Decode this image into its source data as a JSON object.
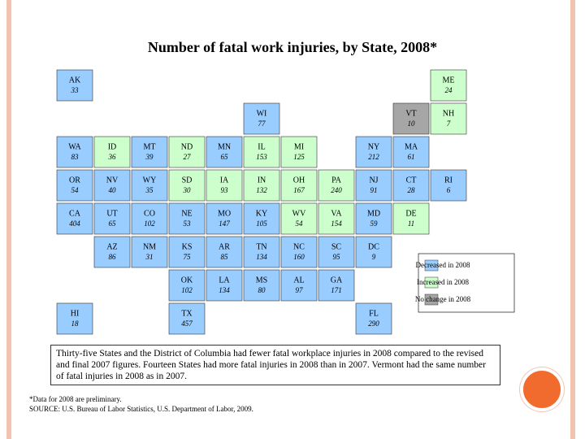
{
  "title": "Number of fatal work injuries, by State, 2008*",
  "legend": [
    {
      "label": "Decreased in 2008",
      "color": "#99ccff"
    },
    {
      "label": "Increased in 2008",
      "color": "#ccffcc"
    },
    {
      "label": "No change in 2008",
      "color": "#a6a6a6"
    }
  ],
  "states": [
    {
      "abbr": "AK",
      "value": 33,
      "color": "#99ccff"
    },
    {
      "abbr": "ME",
      "value": 24,
      "color": "#ccffcc"
    },
    {
      "abbr": "WI",
      "value": 77,
      "color": "#99ccff"
    },
    {
      "abbr": "VT",
      "value": 10,
      "color": "#a6a6a6"
    },
    {
      "abbr": "NH",
      "value": 7,
      "color": "#ccffcc"
    },
    {
      "abbr": "WA",
      "value": 83,
      "color": "#99ccff"
    },
    {
      "abbr": "ID",
      "value": 36,
      "color": "#ccffcc"
    },
    {
      "abbr": "MT",
      "value": 39,
      "color": "#99ccff"
    },
    {
      "abbr": "ND",
      "value": 27,
      "color": "#ccffcc"
    },
    {
      "abbr": "MN",
      "value": 65,
      "color": "#99ccff"
    },
    {
      "abbr": "IL",
      "value": 153,
      "color": "#ccffcc"
    },
    {
      "abbr": "MI",
      "value": 125,
      "color": "#ccffcc"
    },
    {
      "abbr": "NY",
      "value": 212,
      "color": "#99ccff"
    },
    {
      "abbr": "MA",
      "value": 61,
      "color": "#99ccff"
    },
    {
      "abbr": "OR",
      "value": 54,
      "color": "#99ccff"
    },
    {
      "abbr": "NV",
      "value": 40,
      "color": "#99ccff"
    },
    {
      "abbr": "WY",
      "value": 35,
      "color": "#99ccff"
    },
    {
      "abbr": "SD",
      "value": 30,
      "color": "#ccffcc"
    },
    {
      "abbr": "IA",
      "value": 93,
      "color": "#ccffcc"
    },
    {
      "abbr": "IN",
      "value": 132,
      "color": "#ccffcc"
    },
    {
      "abbr": "OH",
      "value": 167,
      "color": "#ccffcc"
    },
    {
      "abbr": "PA",
      "value": 240,
      "color": "#ccffcc"
    },
    {
      "abbr": "NJ",
      "value": 91,
      "color": "#99ccff"
    },
    {
      "abbr": "CT",
      "value": 28,
      "color": "#99ccff"
    },
    {
      "abbr": "RI",
      "value": 6,
      "color": "#99ccff"
    },
    {
      "abbr": "CA",
      "value": 404,
      "color": "#99ccff"
    },
    {
      "abbr": "UT",
      "value": 65,
      "color": "#99ccff"
    },
    {
      "abbr": "CO",
      "value": 102,
      "color": "#99ccff"
    },
    {
      "abbr": "NE",
      "value": 53,
      "color": "#99ccff"
    },
    {
      "abbr": "MO",
      "value": 147,
      "color": "#99ccff"
    },
    {
      "abbr": "KY",
      "value": 105,
      "color": "#99ccff"
    },
    {
      "abbr": "WV",
      "value": 54,
      "color": "#ccffcc"
    },
    {
      "abbr": "VA",
      "value": 154,
      "color": "#ccffcc"
    },
    {
      "abbr": "MD",
      "value": 59,
      "color": "#99ccff"
    },
    {
      "abbr": "DE",
      "value": 11,
      "color": "#ccffcc"
    },
    {
      "abbr": "AZ",
      "value": 86,
      "color": "#99ccff"
    },
    {
      "abbr": "NM",
      "value": 31,
      "color": "#99ccff"
    },
    {
      "abbr": "KS",
      "value": 75,
      "color": "#99ccff"
    },
    {
      "abbr": "AR",
      "value": 85,
      "color": "#99ccff"
    },
    {
      "abbr": "TN",
      "value": 134,
      "color": "#99ccff"
    },
    {
      "abbr": "NC",
      "value": 160,
      "color": "#99ccff"
    },
    {
      "abbr": "SC",
      "value": 95,
      "color": "#99ccff"
    },
    {
      "abbr": "DC",
      "value": 9,
      "color": "#99ccff"
    },
    {
      "abbr": "OK",
      "value": 102,
      "color": "#99ccff"
    },
    {
      "abbr": "LA",
      "value": 134,
      "color": "#99ccff"
    },
    {
      "abbr": "MS",
      "value": 80,
      "color": "#99ccff"
    },
    {
      "abbr": "AL",
      "value": 97,
      "color": "#99ccff"
    },
    {
      "abbr": "GA",
      "value": 171,
      "color": "#99ccff"
    },
    {
      "abbr": "HI",
      "value": 18,
      "color": "#99ccff"
    },
    {
      "abbr": "TX",
      "value": 457,
      "color": "#99ccff"
    },
    {
      "abbr": "FL",
      "value": 290,
      "color": "#99ccff"
    }
  ],
  "note": "Thirty-five States and the District of Columbia had fewer fatal workplace injuries in 2008 compared to the revised and final 2007 figures. Fourteen States had more fatal injuries in 2008 than in 2007. Vermont had the same number of fatal injuries in 2008 as in 2007.",
  "footnotes": [
    "*Data for 2008 are preliminary.",
    "SOURCE: U.S. Bureau of Labor Statistics, U.S. Department of Labor, 2009."
  ]
}
